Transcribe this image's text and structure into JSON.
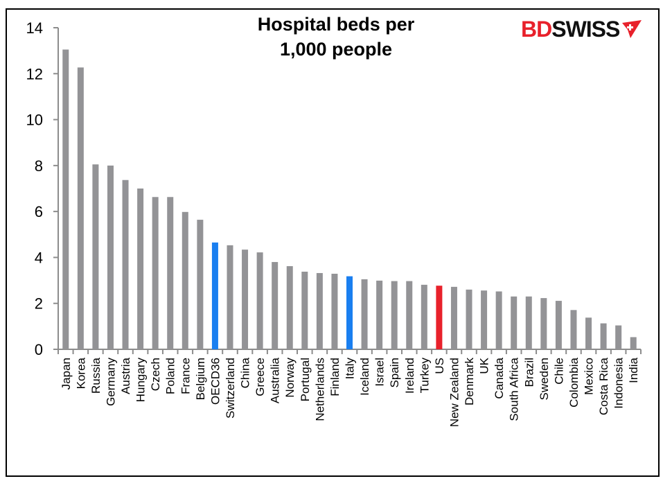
{
  "logo": {
    "part1": "BD",
    "part2": "SWISS",
    "icon": "swiss-cross-flag-icon",
    "colors": {
      "accent": "#e8212b",
      "text": "#111111"
    }
  },
  "chart_data": {
    "type": "bar",
    "title": "Hospital beds per 1,000 people",
    "title_lines": [
      "Hospital beds per",
      "1,000 people"
    ],
    "xlabel": "",
    "ylabel": "",
    "ylim": [
      0,
      14
    ],
    "yticks": [
      0,
      2,
      4,
      6,
      8,
      10,
      12,
      14
    ],
    "grid": false,
    "legend": null,
    "colors": {
      "default": "#939396",
      "highlight_blue": "#1a7ff0",
      "highlight_red": "#e8212b"
    },
    "categories": [
      "Japan",
      "Korea",
      "Russia",
      "Germany",
      "Austria",
      "Hungary",
      "Czech",
      "Poland",
      "France",
      "Belgium",
      "OECD36",
      "Switzerland",
      "China",
      "Greece",
      "Australia",
      "Norway",
      "Portugal",
      "Netherlands",
      "Finland",
      "Italy",
      "Iceland",
      "Israel",
      "Spain",
      "Ireland",
      "Turkey",
      "US",
      "New Zealand",
      "Denmark",
      "UK",
      "Canada",
      "South Africa",
      "Brazil",
      "Sweden",
      "Chile",
      "Colombia",
      "Mexico",
      "Costa Rica",
      "Indonesia",
      "India"
    ],
    "values": [
      13.05,
      12.27,
      8.05,
      8.0,
      7.37,
      7.0,
      6.63,
      6.63,
      5.98,
      5.64,
      4.65,
      4.53,
      4.34,
      4.22,
      3.8,
      3.62,
      3.38,
      3.32,
      3.29,
      3.18,
      3.05,
      2.99,
      2.97,
      2.97,
      2.81,
      2.77,
      2.72,
      2.6,
      2.56,
      2.52,
      2.3,
      2.3,
      2.23,
      2.11,
      1.71,
      1.38,
      1.13,
      1.04,
      0.53
    ],
    "highlights": {
      "OECD36": "highlight_blue",
      "Italy": "highlight_blue",
      "US": "highlight_red"
    }
  }
}
